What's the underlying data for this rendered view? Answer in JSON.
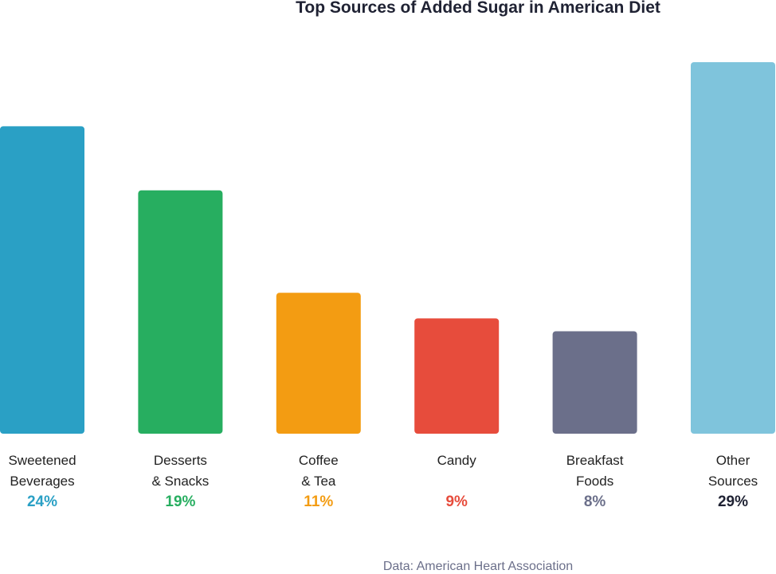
{
  "chart_data": {
    "type": "bar",
    "title": "Top Sources of Added Sugar in American Diet",
    "categories": [
      "Sweetened\nBeverages",
      "Desserts\n& Snacks",
      "Coffee\n& Tea",
      "Candy",
      "Breakfast\nFoods",
      "Other\nSources"
    ],
    "values": [
      24,
      19,
      11,
      9,
      8,
      29
    ],
    "value_labels": [
      "24%",
      "19%",
      "11%",
      "9%",
      "8%",
      "29%"
    ],
    "colors": [
      "#2aa0c5",
      "#27ae60",
      "#f39c12",
      "#e74c3c",
      "#6b6f8a",
      "#7fc4dc"
    ],
    "value_label_colors": [
      "#2aa0c5",
      "#27ae60",
      "#f39c12",
      "#e74c3c",
      "#6b6f8a",
      "#1f2233"
    ],
    "source": "Data: American Heart Association"
  }
}
